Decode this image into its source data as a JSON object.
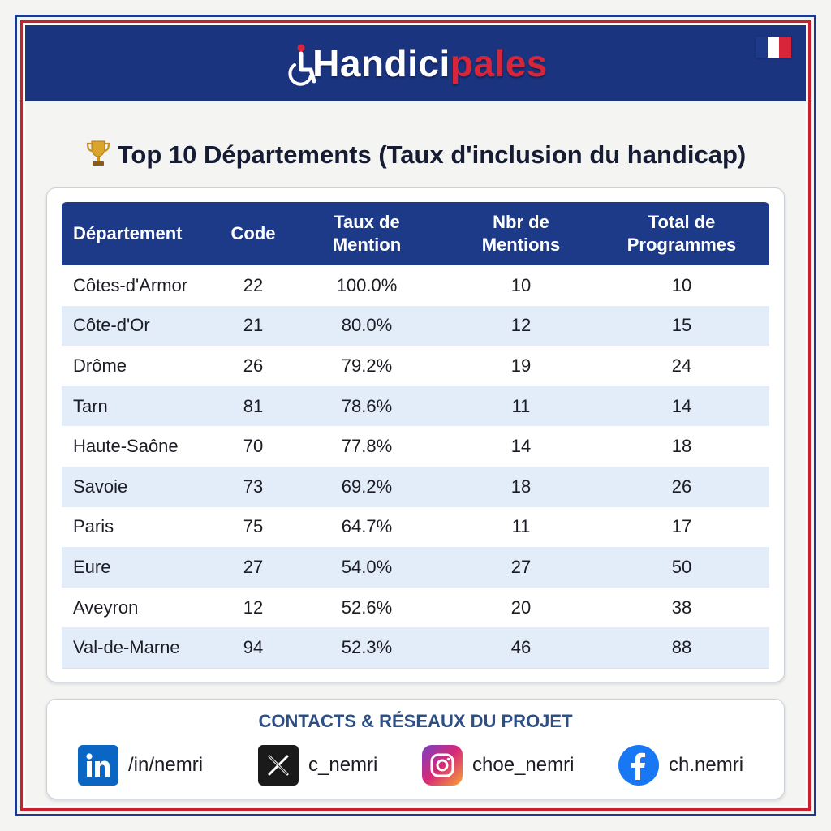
{
  "header": {
    "logo_part1": "Handici",
    "logo_part2": "pales",
    "flag_colors": [
      "#1d3a8a",
      "#ffffff",
      "#d8253a"
    ]
  },
  "title": "Top 10 Départements (Taux d'inclusion du handicap)",
  "title_icon": "trophy-icon",
  "table": {
    "headers": [
      {
        "line1": "Département",
        "line2": ""
      },
      {
        "line1": "Code",
        "line2": ""
      },
      {
        "line1": "Taux de",
        "line2": "Mention"
      },
      {
        "line1": "Nbr de",
        "line2": "Mentions"
      },
      {
        "line1": "Total de",
        "line2": "Programmes"
      }
    ],
    "rows": [
      {
        "departement": "Côtes-d'Armor",
        "code": "22",
        "taux": "100.0%",
        "mentions": "10",
        "total": "10"
      },
      {
        "departement": "Côte-d'Or",
        "code": "21",
        "taux": "80.0%",
        "mentions": "12",
        "total": "15"
      },
      {
        "departement": "Drôme",
        "code": "26",
        "taux": "79.2%",
        "mentions": "19",
        "total": "24"
      },
      {
        "departement": "Tarn",
        "code": "81",
        "taux": "78.6%",
        "mentions": "11",
        "total": "14"
      },
      {
        "departement": "Haute-Saône",
        "code": "70",
        "taux": "77.8%",
        "mentions": "14",
        "total": "18"
      },
      {
        "departement": "Savoie",
        "code": "73",
        "taux": "69.2%",
        "mentions": "18",
        "total": "26"
      },
      {
        "departement": "Paris",
        "code": "75",
        "taux": "64.7%",
        "mentions": "11",
        "total": "17"
      },
      {
        "departement": "Eure",
        "code": "27",
        "taux": "54.0%",
        "mentions": "27",
        "total": "50"
      },
      {
        "departement": "Aveyron",
        "code": "12",
        "taux": "52.6%",
        "mentions": "20",
        "total": "38"
      },
      {
        "departement": "Val-de-Marne",
        "code": "94",
        "taux": "52.3%",
        "mentions": "46",
        "total": "88"
      }
    ]
  },
  "contacts": {
    "title": "CONTACTS & RÉSEAUX DU PROJET",
    "items": [
      {
        "icon": "linkedin-icon",
        "handle": "/in/nemri"
      },
      {
        "icon": "x-icon",
        "handle": "c_nemri"
      },
      {
        "icon": "instagram-icon",
        "handle": "choe_nemri"
      },
      {
        "icon": "facebook-icon",
        "handle": "ch.nemri"
      }
    ]
  }
}
